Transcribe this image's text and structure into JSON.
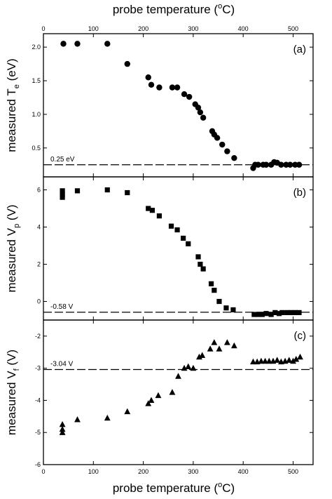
{
  "top_axis_title": "probe temperature (",
  "top_axis_sup": "o",
  "top_axis_unit": "C)",
  "bottom_axis_title": "probe temperature (",
  "bottom_axis_sup": "o",
  "bottom_axis_unit": "C)",
  "chart_data": [
    {
      "type": "scatter",
      "panel": "(a)",
      "ylabel": "measured T",
      "ylabel_sub": "e",
      "ylabel_unit": " (eV)",
      "xlim": [
        0,
        540
      ],
      "ylim": [
        0.07,
        2.2
      ],
      "xticks": [
        0,
        100,
        200,
        300,
        400,
        500
      ],
      "yticks": [
        0.5,
        1.0,
        1.5,
        2.0
      ],
      "ytick_labels": [
        "0.5",
        "1.0",
        "1.5",
        "2.0"
      ],
      "marker": "circle",
      "reference_line": {
        "value": 0.25,
        "label": "0.25 eV"
      },
      "series": [
        {
          "x": [
            40,
            68,
            128,
            168,
            210,
            216,
            232,
            258,
            268,
            282,
            292,
            304,
            310,
            314,
            320,
            338,
            342,
            348,
            358,
            368,
            382,
            420,
            424,
            430,
            440,
            446,
            456,
            462,
            468,
            476,
            486,
            494,
            504,
            512
          ],
          "y": [
            2.05,
            2.05,
            2.05,
            1.75,
            1.55,
            1.44,
            1.4,
            1.4,
            1.4,
            1.3,
            1.26,
            1.15,
            1.1,
            1.03,
            0.95,
            0.75,
            0.7,
            0.65,
            0.55,
            0.45,
            0.35,
            0.2,
            0.25,
            0.25,
            0.25,
            0.25,
            0.25,
            0.29,
            0.28,
            0.25,
            0.25,
            0.25,
            0.25,
            0.25
          ]
        }
      ]
    },
    {
      "type": "scatter",
      "panel": "(b)",
      "ylabel": "measured V",
      "ylabel_sub": "p",
      "ylabel_unit": " (V)",
      "xlim": [
        0,
        540
      ],
      "ylim": [
        -1.0,
        6.7
      ],
      "xticks": [
        0,
        100,
        200,
        300,
        400,
        500
      ],
      "yticks": [
        0,
        2,
        4,
        6
      ],
      "ytick_labels": [
        "0",
        "2",
        "4",
        "6"
      ],
      "marker": "square",
      "reference_line": {
        "value": -0.58,
        "label": "-0.58 V"
      },
      "series": [
        {
          "x": [
            38,
            38,
            38,
            68,
            128,
            168,
            210,
            218,
            232,
            256,
            268,
            280,
            290,
            310,
            314,
            320,
            336,
            342,
            352,
            366,
            380,
            422,
            430,
            438,
            446,
            456,
            464,
            472,
            478,
            488,
            496,
            504,
            512
          ],
          "y": [
            5.95,
            5.75,
            5.6,
            5.95,
            6.0,
            5.85,
            5.0,
            4.9,
            4.6,
            4.05,
            3.85,
            3.4,
            3.1,
            2.4,
            2.0,
            1.75,
            0.95,
            0.6,
            0.0,
            -0.35,
            -0.45,
            -0.7,
            -0.7,
            -0.7,
            -0.65,
            -0.7,
            -0.6,
            -0.65,
            -0.6,
            -0.6,
            -0.6,
            -0.6,
            -0.6
          ]
        }
      ]
    },
    {
      "type": "scatter",
      "panel": "(c)",
      "ylabel": "measured V",
      "ylabel_sub": "f",
      "ylabel_unit": " (V)",
      "xlim": [
        0,
        540
      ],
      "ylim": [
        -6.0,
        -1.5
      ],
      "xticks": [
        0,
        100,
        200,
        300,
        400,
        500
      ],
      "xtick_labels": [
        "0",
        "100",
        "200",
        "300",
        "400",
        "500"
      ],
      "yticks": [
        -6,
        -5,
        -4,
        -3,
        -2
      ],
      "ytick_labels": [
        "-6",
        "-5",
        "-4",
        "-3",
        "-2"
      ],
      "marker": "triangle",
      "reference_line": {
        "value": -3.04,
        "label": "-3.04 V"
      },
      "series": [
        {
          "x": [
            38,
            38,
            38,
            68,
            128,
            168,
            210,
            216,
            230,
            258,
            270,
            282,
            290,
            300,
            312,
            318,
            334,
            342,
            352,
            368,
            382,
            420,
            428,
            436,
            444,
            452,
            460,
            468,
            476,
            484,
            492,
            500,
            506,
            514
          ],
          "y": [
            -4.75,
            -4.9,
            -5.0,
            -4.6,
            -4.55,
            -4.35,
            -4.1,
            -4.0,
            -3.85,
            -3.75,
            -3.25,
            -3.0,
            -2.95,
            -3.0,
            -2.65,
            -2.6,
            -2.4,
            -2.2,
            -2.4,
            -2.2,
            -2.3,
            -2.8,
            -2.8,
            -2.78,
            -2.78,
            -2.78,
            -2.78,
            -2.75,
            -2.8,
            -2.78,
            -2.75,
            -2.78,
            -2.72,
            -2.65
          ]
        }
      ]
    }
  ]
}
